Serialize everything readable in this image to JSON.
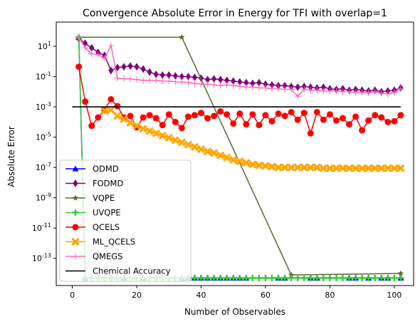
{
  "chart_data": {
    "type": "line",
    "title": "Convergence Absolute Error in Energy for TFI with overlap=1",
    "xlabel": "Number of Observables",
    "ylabel": "Absolute Error",
    "xlim": [
      -5,
      106
    ],
    "ylim_log10": [
      -14.8,
      2.6
    ],
    "y_scale": "log",
    "x_ticks": [
      0,
      20,
      40,
      60,
      80,
      100
    ],
    "x_tick_labels": [
      "0",
      "20",
      "40",
      "60",
      "80",
      "100"
    ],
    "y_ticks_log10": [
      1,
      -1,
      -3,
      -5,
      -7,
      -9,
      -11,
      -13
    ],
    "y_tick_labels": [
      "10^1",
      "10^-1",
      "10^-3",
      "10^-5",
      "10^-7",
      "10^-9",
      "10^-11",
      "10^-13"
    ],
    "legend_position": "lower-left",
    "series": [
      {
        "name": "ODMD",
        "color": "#0000ff",
        "marker": "triangle-up",
        "x": [
          2,
          4,
          16,
          22,
          34,
          36,
          38,
          40,
          42,
          44,
          46,
          48,
          50,
          52,
          54,
          64,
          66,
          74,
          76,
          86,
          88,
          92,
          96,
          98,
          102
        ],
        "log10_y": [
          1.6,
          -14.3,
          -14.3,
          -14.3,
          -14.3,
          -14.3,
          -14.3,
          -14.3,
          -14.3,
          -14.3,
          -14.3,
          -14.3,
          -14.3,
          -14.3,
          -14.3,
          -14.3,
          -14.3,
          -14.3,
          -14.3,
          -14.3,
          -14.3,
          -14.3,
          -14.3,
          -14.3,
          -14.3
        ]
      },
      {
        "name": "FODMD",
        "color": "#800080",
        "marker": "diamond",
        "x": [
          2,
          4,
          6,
          8,
          10,
          12,
          14,
          16,
          18,
          20,
          22,
          24,
          26,
          28,
          30,
          32,
          34,
          36,
          38,
          40,
          42,
          44,
          46,
          48,
          50,
          52,
          54,
          56,
          58,
          60,
          62,
          64,
          66,
          68,
          70,
          72,
          74,
          76,
          78,
          80,
          82,
          84,
          86,
          88,
          90,
          92,
          94,
          96,
          98,
          100,
          102
        ],
        "log10_y": [
          1.5,
          1.2,
          0.9,
          0.6,
          0.4,
          -0.6,
          -0.4,
          -0.35,
          -0.3,
          -0.35,
          -0.5,
          -0.7,
          -0.85,
          -0.9,
          -0.9,
          -0.95,
          -1.0,
          -1.0,
          -1.05,
          -1.1,
          -1.2,
          -1.15,
          -1.2,
          -1.25,
          -1.3,
          -1.35,
          -1.4,
          -1.45,
          -1.4,
          -1.5,
          -1.55,
          -1.6,
          -1.6,
          -1.65,
          -1.7,
          -1.65,
          -1.7,
          -1.75,
          -1.7,
          -1.8,
          -1.85,
          -1.8,
          -1.9,
          -1.85,
          -1.9,
          -1.95,
          -1.9,
          -2.0,
          -1.95,
          -1.9,
          -1.75
        ]
      },
      {
        "name": "VQPE",
        "color": "#556b2f",
        "marker": "star",
        "x": [
          2,
          34,
          68,
          102
        ],
        "log10_y": [
          1.6,
          1.6,
          -14.1,
          -14.0
        ]
      },
      {
        "name": "UVQPE",
        "color": "#32cd32",
        "marker": "plus",
        "x": [
          2,
          4,
          6,
          8,
          10,
          12,
          14,
          16,
          18,
          20,
          22,
          24,
          26,
          28,
          30,
          32,
          34,
          36,
          38,
          40,
          42,
          44,
          46,
          48,
          50,
          52,
          54,
          56,
          58,
          60,
          62,
          64,
          66,
          68,
          70,
          72,
          74,
          76,
          78,
          80,
          82,
          84,
          86,
          88,
          90,
          92,
          94,
          96,
          98,
          100,
          102
        ],
        "log10_y": [
          1.6,
          -14.3,
          -14.3,
          -14.3,
          -14.3,
          -14.3,
          -14.3,
          -14.3,
          -14.3,
          -14.3,
          -14.3,
          -14.3,
          -14.3,
          -14.3,
          -14.3,
          -14.3,
          -14.3,
          -14.3,
          -14.3,
          -14.3,
          -14.3,
          -14.3,
          -14.3,
          -14.3,
          -14.3,
          -14.3,
          -14.3,
          -14.3,
          -14.3,
          -14.3,
          -14.3,
          -14.3,
          -14.3,
          -14.3,
          -14.3,
          -14.3,
          -14.3,
          -14.3,
          -14.3,
          -14.3,
          -14.3,
          -14.3,
          -14.3,
          -14.3,
          -14.3,
          -14.3,
          -14.3,
          -14.3,
          -14.3,
          -14.3,
          -14.3
        ]
      },
      {
        "name": "QCELS",
        "color": "#ff0000",
        "marker": "circle",
        "x": [
          2,
          4,
          6,
          8,
          10,
          12,
          14,
          16,
          18,
          20,
          22,
          24,
          26,
          28,
          30,
          32,
          34,
          36,
          38,
          40,
          42,
          44,
          46,
          48,
          50,
          52,
          54,
          56,
          58,
          60,
          62,
          64,
          66,
          68,
          70,
          72,
          74,
          76,
          78,
          80,
          82,
          84,
          86,
          88,
          90,
          92,
          94,
          96,
          98,
          100,
          102
        ],
        "log10_y": [
          -0.35,
          -2.65,
          -4.25,
          -3.7,
          -3.2,
          -2.5,
          -2.95,
          -3.7,
          -3.6,
          -4.35,
          -3.7,
          -3.55,
          -3.75,
          -4.2,
          -3.5,
          -4.0,
          -4.4,
          -3.65,
          -3.55,
          -3.4,
          -3.75,
          -3.6,
          -3.3,
          -3.5,
          -4.1,
          -3.45,
          -4.15,
          -3.5,
          -4.2,
          -3.55,
          -3.95,
          -3.45,
          -3.6,
          -3.35,
          -3.85,
          -3.4,
          -4.75,
          -3.35,
          -3.85,
          -3.5,
          -3.9,
          -3.75,
          -4.15,
          -3.65,
          -4.55,
          -3.9,
          -3.55,
          -3.7,
          -4.0,
          -3.95,
          -3.55
        ]
      },
      {
        "name": "ML_QCELS",
        "color": "#ffa500",
        "marker": "x-filled",
        "x": [
          10,
          12,
          14,
          16,
          18,
          20,
          22,
          24,
          26,
          28,
          30,
          32,
          34,
          36,
          38,
          40,
          42,
          44,
          46,
          48,
          50,
          52,
          54,
          56,
          58,
          60,
          62,
          64,
          66,
          68,
          70,
          72,
          74,
          76,
          78,
          80,
          82,
          84,
          86,
          88,
          90,
          92,
          94,
          96,
          98,
          100,
          102
        ],
        "log10_y": [
          -3.25,
          -3.2,
          -3.6,
          -3.8,
          -4.05,
          -4.25,
          -4.45,
          -4.6,
          -4.75,
          -4.9,
          -5.05,
          -5.2,
          -5.35,
          -5.5,
          -5.65,
          -5.8,
          -5.95,
          -6.05,
          -6.2,
          -6.35,
          -6.5,
          -6.6,
          -6.7,
          -6.8,
          -6.85,
          -6.9,
          -6.95,
          -7.0,
          -7.0,
          -7.0,
          -7.0,
          -7.0,
          -7.0,
          -7.0,
          -7.05,
          -7.05,
          -7.05,
          -7.05,
          -7.05,
          -7.05,
          -7.05,
          -7.05,
          -7.05,
          -7.05,
          -7.05,
          -7.05,
          -7.05
        ]
      },
      {
        "name": "QMEGS",
        "color": "#ff69b4",
        "marker": "tick",
        "x": [
          2,
          4,
          6,
          8,
          10,
          12,
          14,
          16,
          18,
          20,
          22,
          24,
          26,
          28,
          30,
          32,
          34,
          36,
          38,
          40,
          42,
          44,
          46,
          48,
          50,
          52,
          54,
          56,
          58,
          60,
          62,
          64,
          66,
          68,
          70,
          72,
          74,
          76,
          78,
          80,
          82,
          84,
          86,
          88,
          90,
          92,
          94,
          96,
          98,
          100,
          102
        ],
        "log10_y": [
          1.6,
          0.9,
          0.5,
          0.45,
          0.2,
          1.05,
          -1.1,
          -1.15,
          -1.15,
          -1.2,
          -1.25,
          -1.25,
          -1.25,
          -1.3,
          -1.3,
          -1.35,
          -1.35,
          -1.4,
          -1.45,
          -1.5,
          -1.5,
          -1.55,
          -1.6,
          -1.55,
          -1.6,
          -1.65,
          -1.7,
          -1.7,
          -1.75,
          -1.75,
          -1.8,
          -1.8,
          -1.85,
          -1.85,
          -2.3,
          -1.85,
          -1.9,
          -1.9,
          -1.95,
          -1.95,
          -1.95,
          -2.0,
          -2.0,
          -2.05,
          -2.05,
          -2.05,
          -2.0,
          -2.1,
          -2.15,
          -2.05,
          -1.8
        ]
      },
      {
        "name": "Chemical Accuracy",
        "color": "#000000",
        "marker": "none",
        "x": [
          0,
          102
        ],
        "log10_y": [
          -3,
          -3
        ]
      }
    ]
  }
}
